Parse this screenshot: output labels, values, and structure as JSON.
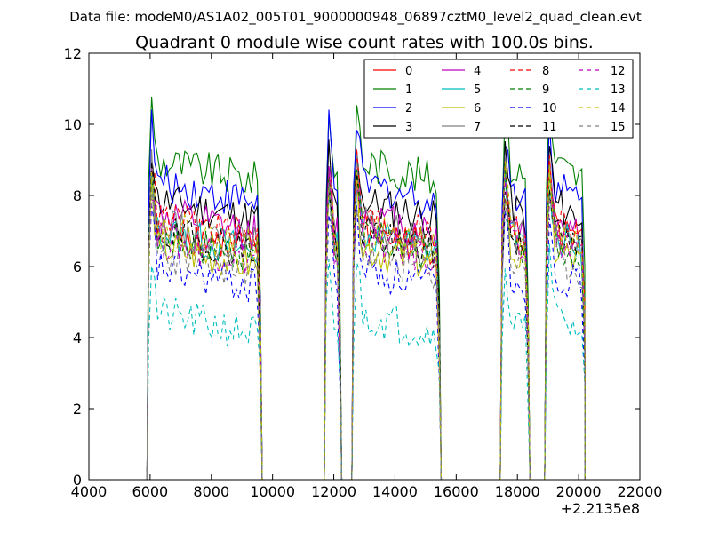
{
  "chart_data": {
    "type": "line",
    "suptitle": "Data file: modeM0/AS1A02_005T01_9000000948_06897cztM0_level2_quad_clean.evt",
    "title": "Quadrant 0 module wise count rates with 100.0s bins.",
    "xlabel": "",
    "ylabel": "",
    "x_offset_label": "+2.2135e8",
    "xlim": [
      4000,
      22000
    ],
    "ylim": [
      0,
      12
    ],
    "x_ticks": [
      4000,
      6000,
      8000,
      10000,
      12000,
      14000,
      16000,
      18000,
      20000,
      22000
    ],
    "x_tick_labels": [
      "4000",
      "6000",
      "8000",
      "10000",
      "12000",
      "14000",
      "16000",
      "18000",
      "20000",
      "22000"
    ],
    "y_ticks": [
      0,
      2,
      4,
      6,
      8,
      10,
      12
    ],
    "y_tick_labels": [
      "0",
      "2",
      "4",
      "6",
      "8",
      "10",
      "12"
    ],
    "legend_position": "top-right",
    "note": "Each series is a time-binned light curve; piecewise shape described by segment ranges and approximate mean levels with pseudo-random scatter.",
    "segments": [
      {
        "start": 5950,
        "end": 9600
      },
      {
        "start": 11750,
        "end": 12200
      },
      {
        "start": 12650,
        "end": 15450
      },
      {
        "start": 17500,
        "end": 18350
      },
      {
        "start": 18950,
        "end": 20200
      }
    ],
    "series": [
      {
        "name": "0",
        "color": "#ff0000",
        "style": "solid",
        "level": 7.1,
        "seed": 1
      },
      {
        "name": "1",
        "color": "#008000",
        "style": "solid",
        "level": 9.0,
        "seed": 2
      },
      {
        "name": "2",
        "color": "#0000ff",
        "style": "solid",
        "level": 8.4,
        "seed": 3
      },
      {
        "name": "3",
        "color": "#000000",
        "style": "solid",
        "level": 7.9,
        "seed": 4
      },
      {
        "name": "4",
        "color": "#bf00bf",
        "style": "solid",
        "level": 7.5,
        "seed": 5
      },
      {
        "name": "5",
        "color": "#00bfbf",
        "style": "solid",
        "level": 7.0,
        "seed": 6
      },
      {
        "name": "6",
        "color": "#bfbf00",
        "style": "solid",
        "level": 6.6,
        "seed": 7
      },
      {
        "name": "7",
        "color": "#808080",
        "style": "solid",
        "level": 7.2,
        "seed": 8
      },
      {
        "name": "8",
        "color": "#ff0000",
        "style": "dashed",
        "level": 7.4,
        "seed": 9
      },
      {
        "name": "9",
        "color": "#008000",
        "style": "dashed",
        "level": 6.9,
        "seed": 10
      },
      {
        "name": "10",
        "color": "#0000ff",
        "style": "dashed",
        "level": 6.0,
        "seed": 11
      },
      {
        "name": "11",
        "color": "#000000",
        "style": "dashed",
        "level": 7.0,
        "seed": 12
      },
      {
        "name": "12",
        "color": "#bf00bf",
        "style": "dashed",
        "level": 6.8,
        "seed": 13
      },
      {
        "name": "13",
        "color": "#00bfbf",
        "style": "dashed",
        "level": 4.7,
        "seed": 14
      },
      {
        "name": "14",
        "color": "#bfbf00",
        "style": "dashed",
        "level": 7.1,
        "seed": 15
      },
      {
        "name": "15",
        "color": "#808080",
        "style": "dashed",
        "level": 6.4,
        "seed": 16
      }
    ]
  }
}
